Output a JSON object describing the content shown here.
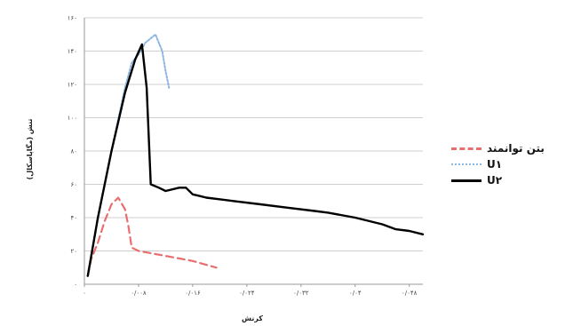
{
  "chart_data": {
    "type": "line",
    "title": "",
    "xlabel": "کرنش",
    "ylabel": "تنش (مگاپاسکال)",
    "xlim": [
      0,
      0.05
    ],
    "ylim": [
      0,
      160
    ],
    "x_ticks": [
      "۰",
      "۰/۰۰۸",
      "۰/۰۱۶",
      "۰/۰۲۴",
      "۰/۰۳۲",
      "۰/۰۴",
      "۰/۰۴۸"
    ],
    "y_ticks": [
      "۰",
      "۲۰",
      "۴۰",
      "۶۰",
      "۸۰",
      "۱۰۰",
      "۱۲۰",
      "۱۴۰",
      "۱۶۰"
    ],
    "legend_position": "right",
    "grid": "horizontal",
    "series": [
      {
        "name": "بتن توانمند",
        "color": "#e86f6f",
        "dash": "dashed",
        "x": [
          0.0005,
          0.001,
          0.002,
          0.003,
          0.004,
          0.005,
          0.006,
          0.0065,
          0.007,
          0.008,
          0.012,
          0.016,
          0.0195
        ],
        "y": [
          5,
          15,
          25,
          38,
          48,
          52,
          45,
          35,
          22,
          20,
          17,
          14,
          10
        ]
      },
      {
        "name": "U۱",
        "color": "#8ab6e0",
        "dash": "dotted",
        "x": [
          0.0005,
          0.002,
          0.004,
          0.006,
          0.007,
          0.008,
          0.009,
          0.0105,
          0.0115,
          0.012,
          0.0125
        ],
        "y": [
          5,
          40,
          80,
          118,
          133,
          138,
          145,
          150,
          140,
          128,
          118
        ]
      },
      {
        "name": "U۲",
        "color": "#000000",
        "dash": "solid",
        "x": [
          0.0005,
          0.002,
          0.004,
          0.006,
          0.0075,
          0.0085,
          0.0092,
          0.0098,
          0.011,
          0.012,
          0.014,
          0.015,
          0.016,
          0.017,
          0.018,
          0.022,
          0.026,
          0.03,
          0.034,
          0.036,
          0.04,
          0.044,
          0.046,
          0.048,
          0.05
        ],
        "y": [
          5,
          40,
          80,
          115,
          135,
          144,
          118,
          60,
          58,
          56,
          58,
          58,
          54,
          53,
          52,
          50,
          48,
          46,
          44,
          43,
          40,
          36,
          33,
          32,
          30
        ]
      }
    ]
  },
  "colors": {
    "grid": "#cfcfcf",
    "axis": "#9a9a9a"
  }
}
